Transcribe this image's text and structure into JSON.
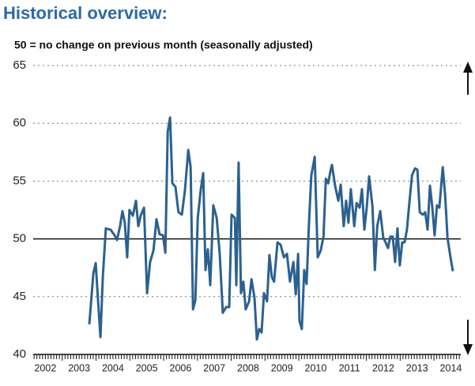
{
  "chart_data": {
    "type": "line",
    "title": "Historical overview:",
    "subtitle": "50 = no change on previous month (seasonally adjusted)",
    "xlim": [
      2002,
      2014.84
    ],
    "xticks": [
      {
        "value": 2002.5,
        "label": "2002"
      },
      {
        "value": 2003.5,
        "label": "2003"
      },
      {
        "value": 2004.5,
        "label": "2004"
      },
      {
        "value": 2005.5,
        "label": "2005"
      },
      {
        "value": 2006.5,
        "label": "2006"
      },
      {
        "value": 2007.5,
        "label": "2007"
      },
      {
        "value": 2008.5,
        "label": "2008"
      },
      {
        "value": 2009.5,
        "label": "2009"
      },
      {
        "value": 2010.5,
        "label": "2010"
      },
      {
        "value": 2011.5,
        "label": "2011"
      },
      {
        "value": 2012.5,
        "label": "2012"
      },
      {
        "value": 2013.5,
        "label": "2013"
      },
      {
        "value": 2014.5,
        "label": "2014"
      }
    ],
    "ylim": [
      40,
      65
    ],
    "yticks": [
      40,
      45,
      50,
      55,
      60,
      65
    ],
    "grid": true,
    "hline": 50,
    "x": [
      2003.8,
      2003.92,
      2003.99,
      2004.06,
      2004.13,
      2004.2,
      2004.29,
      2004.43,
      2004.55,
      2004.62,
      2004.71,
      2004.78,
      2004.85,
      2004.92,
      2004.99,
      2005.09,
      2005.18,
      2005.25,
      2005.32,
      2005.42,
      2005.51,
      2005.6,
      2005.7,
      2005.79,
      2005.88,
      2005.98,
      2006.05,
      2006.12,
      2006.19,
      2006.26,
      2006.35,
      2006.44,
      2006.54,
      2006.63,
      2006.73,
      2006.8,
      2006.87,
      2006.94,
      2007.01,
      2007.1,
      2007.17,
      2007.24,
      2007.31,
      2007.38,
      2007.47,
      2007.57,
      2007.66,
      2007.75,
      2007.85,
      2007.94,
      2008.01,
      2008.11,
      2008.15,
      2008.22,
      2008.29,
      2008.36,
      2008.43,
      2008.53,
      2008.6,
      2008.69,
      2008.76,
      2008.83,
      2008.9,
      2008.97,
      2009.06,
      2009.13,
      2009.2,
      2009.27,
      2009.37,
      2009.46,
      2009.56,
      2009.65,
      2009.74,
      2009.84,
      2009.91,
      2009.98,
      2010.02,
      2010.09,
      2010.16,
      2010.23,
      2010.3,
      2010.37,
      2010.47,
      2010.56,
      2010.65,
      2010.73,
      2010.8,
      2010.87,
      2010.94,
      2010.98,
      2011.08,
      2011.17,
      2011.24,
      2011.33,
      2011.4,
      2011.47,
      2011.54,
      2011.64,
      2011.71,
      2011.8,
      2011.87,
      2011.94,
      2012.01,
      2012.08,
      2012.18,
      2012.25,
      2012.32,
      2012.41,
      2012.5,
      2012.57,
      2012.64,
      2012.71,
      2012.78,
      2012.85,
      2012.92,
      2012.99,
      2013.06,
      2013.13,
      2013.2,
      2013.27,
      2013.35,
      2013.44,
      2013.51,
      2013.58,
      2013.67,
      2013.74,
      2013.81,
      2013.88,
      2013.95,
      2014.02,
      2014.09,
      2014.16,
      2014.26,
      2014.33,
      2014.4,
      2014.49,
      2014.56
    ],
    "series": [
      {
        "color": "#2b6190",
        "values": [
          42.6,
          47.0,
          47.9,
          44.6,
          41.5,
          46.7,
          50.9,
          50.8,
          50.3,
          49.9,
          51.1,
          52.4,
          51.4,
          48.4,
          52.5,
          52.0,
          53.3,
          51.1,
          52.0,
          52.7,
          45.3,
          48.0,
          49.0,
          51.7,
          50.4,
          50.3,
          48.8,
          59.3,
          60.5,
          54.8,
          54.5,
          52.3,
          52.1,
          54.2,
          57.7,
          56.2,
          43.9,
          44.7,
          51.8,
          54.3,
          55.7,
          47.3,
          49.1,
          46.0,
          52.9,
          51.8,
          48.7,
          43.6,
          44.1,
          44.1,
          52.1,
          51.8,
          46.0,
          56.6,
          45.3,
          46.3,
          43.9,
          44.6,
          46.5,
          44.9,
          41.3,
          42.2,
          41.9,
          45.3,
          44.6,
          48.6,
          46.7,
          46.3,
          49.7,
          49.5,
          48.4,
          48.7,
          46.3,
          48.0,
          45.2,
          48.7,
          42.9,
          42.2,
          47.3,
          46.1,
          51.3,
          55.5,
          57.1,
          48.4,
          49.0,
          50.2,
          55.2,
          54.8,
          55.9,
          56.4,
          54.5,
          53.3,
          54.7,
          51.1,
          53.3,
          51.4,
          54.3,
          51.1,
          53.1,
          52.7,
          54.3,
          50.8,
          52.7,
          55.4,
          52.8,
          47.3,
          51.1,
          52.4,
          50.1,
          49.7,
          49.2,
          50.2,
          50.2,
          48.0,
          50.9,
          47.7,
          49.7,
          49.7,
          50.8,
          53.1,
          55.5,
          56.1,
          56.0,
          52.3,
          52.1,
          52.3,
          50.8,
          54.6,
          52.8,
          50.3,
          52.9,
          52.7,
          56.2,
          53.8,
          50.1,
          48.4,
          47.2
        ]
      }
    ]
  }
}
